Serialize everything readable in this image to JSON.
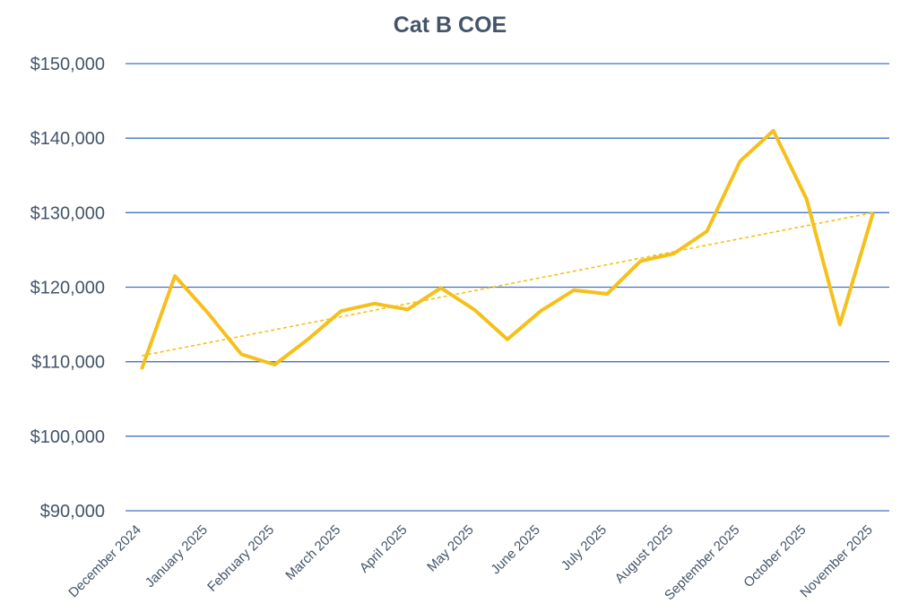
{
  "chart_data": {
    "type": "line",
    "title": "Cat B COE",
    "xlabel": "",
    "ylabel": "",
    "ylim": [
      90000,
      150000
    ],
    "yticks": [
      90000,
      100000,
      110000,
      120000,
      130000,
      140000,
      150000
    ],
    "ytick_labels": [
      "$90,000",
      "$100,000",
      "$110,000",
      "$120,000",
      "$130,000",
      "$140,000",
      "$150,000"
    ],
    "x_tick_labels": [
      "December 2024",
      "January 2025",
      "February 2025",
      "March 2025",
      "April 2025",
      "May 2025",
      "June 2025",
      "July 2025",
      "August 2025",
      "September 2025",
      "October 2025",
      "November 2025"
    ],
    "series": [
      {
        "values": [
          109000,
          121500,
          116500,
          111000,
          109600,
          113000,
          116800,
          117800,
          117000,
          119900,
          117000,
          113000,
          116800,
          119600,
          119100,
          123500,
          124500,
          127500,
          136900,
          141000,
          131800,
          115000,
          130000
        ],
        "color": "#f5c01b"
      }
    ],
    "trendline": {
      "type": "linear",
      "start": 110800,
      "end": 130000,
      "color": "#f5c01b",
      "style": "dashed"
    },
    "grid": true,
    "legend": "none",
    "gridline_color": "#4472c4",
    "tick_color": "#44546a"
  }
}
